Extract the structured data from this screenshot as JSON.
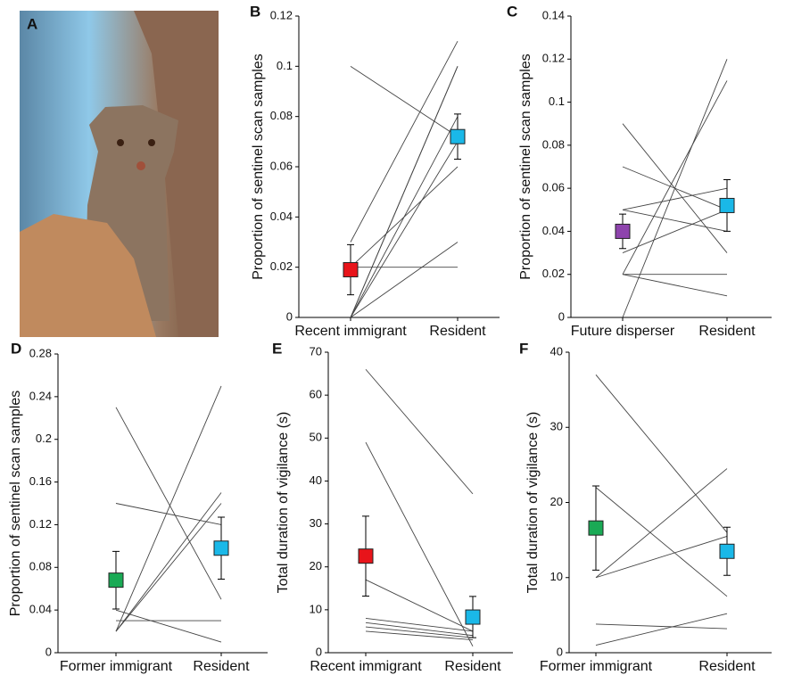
{
  "photo_label": "A",
  "chart_data": [
    {
      "type": "paired",
      "panel": "B",
      "ylabel": "Proportion of sentinel scan samples",
      "categories": [
        "Recent immigrant",
        "Resident"
      ],
      "ylim": [
        0,
        0.12
      ],
      "yticks": [
        0,
        0.02,
        0.04,
        0.06,
        0.08,
        0.1,
        0.12
      ],
      "pairs": [
        [
          0.1,
          0.072
        ],
        [
          0.03,
          0.11
        ],
        [
          0.02,
          0.02
        ],
        [
          0,
          0.1
        ],
        [
          0,
          0.1
        ],
        [
          0,
          0.08
        ],
        [
          0,
          0.07
        ],
        [
          0,
          0.03
        ],
        [
          0.02,
          0.06
        ]
      ],
      "means": [
        0.019,
        0.072
      ],
      "errors": [
        0.01,
        0.009
      ],
      "mean_colors": [
        "#e8141a",
        "#1ab8e8"
      ]
    },
    {
      "type": "paired",
      "panel": "C",
      "ylabel": "Proportion of sentinel scan samples",
      "categories": [
        "Future disperser",
        "Resident"
      ],
      "ylim": [
        0,
        0.14
      ],
      "yticks": [
        0,
        0.02,
        0.04,
        0.06,
        0.08,
        0.1,
        0.12,
        0.14
      ],
      "pairs": [
        [
          0.09,
          0.03
        ],
        [
          0.07,
          0.05
        ],
        [
          0.05,
          0.06
        ],
        [
          0.05,
          0.04
        ],
        [
          0.03,
          0.05
        ],
        [
          0.02,
          0.02
        ],
        [
          0.02,
          0.01
        ],
        [
          0,
          0.12
        ],
        [
          0.02,
          0.11
        ]
      ],
      "means": [
        0.04,
        0.052
      ],
      "errors": [
        0.008,
        0.012
      ],
      "mean_colors": [
        "#8e44ad",
        "#1ab8e8"
      ]
    },
    {
      "type": "paired",
      "panel": "D",
      "ylabel": "Proportion of sentinel scan samples",
      "categories": [
        "Former immigrant",
        "Resident"
      ],
      "ylim": [
        0,
        0.28
      ],
      "yticks": [
        0,
        0.04,
        0.08,
        0.12,
        0.16,
        0.2,
        0.24,
        0.28
      ],
      "pairs": [
        [
          0.23,
          0.05
        ],
        [
          0.14,
          0.12
        ],
        [
          0.03,
          0.03
        ],
        [
          0.04,
          0.01
        ],
        [
          0.02,
          0.25
        ],
        [
          0.02,
          0.15
        ],
        [
          0.02,
          0.14
        ]
      ],
      "means": [
        0.068,
        0.098
      ],
      "errors": [
        0.027,
        0.029
      ],
      "mean_colors": [
        "#1aaa55",
        "#1ab8e8"
      ]
    },
    {
      "type": "paired",
      "panel": "E",
      "ylabel": "Total duration of vigilance (s)",
      "categories": [
        "Recent immigrant",
        "Resident"
      ],
      "ylim": [
        0,
        70
      ],
      "yticks": [
        0,
        10,
        20,
        30,
        40,
        50,
        60,
        70
      ],
      "pairs": [
        [
          66,
          37
        ],
        [
          49,
          1.5
        ],
        [
          17,
          5
        ],
        [
          8,
          5
        ],
        [
          7,
          4
        ],
        [
          6,
          3.5
        ],
        [
          5,
          3
        ]
      ],
      "means": [
        22.5,
        8.3
      ],
      "errors": [
        9.3,
        4.8
      ],
      "mean_colors": [
        "#e8141a",
        "#1ab8e8"
      ]
    },
    {
      "type": "paired",
      "panel": "F",
      "ylabel": "Total duration of vigilance (s)",
      "categories": [
        "Former immigrant",
        "Resident"
      ],
      "ylim": [
        0,
        40
      ],
      "yticks": [
        0,
        10,
        20,
        30,
        40
      ],
      "pairs": [
        [
          37,
          16
        ],
        [
          22,
          7.5
        ],
        [
          10,
          24.5
        ],
        [
          10,
          15.5
        ],
        [
          1,
          5.2
        ],
        [
          3.8,
          3.2
        ]
      ],
      "means": [
        16.6,
        13.5
      ],
      "errors": [
        5.6,
        3.2
      ],
      "mean_colors": [
        "#1aaa55",
        "#1ab8e8"
      ]
    }
  ]
}
